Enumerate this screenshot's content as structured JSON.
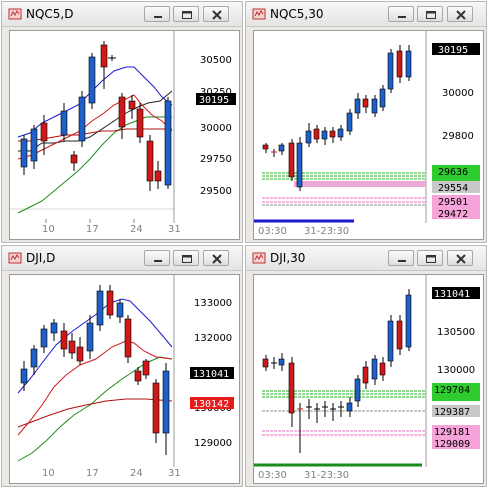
{
  "colors": {
    "up": "#1f5fc8",
    "down": "#d01818",
    "accent_blue": "#1a1ad0"
  },
  "panels": [
    {
      "title": "NQC5,D",
      "y_labels": [
        "30500",
        "30250",
        "30000",
        "29750",
        "29500"
      ],
      "x_labels": [
        "10",
        "17",
        "24",
        "31"
      ],
      "price_tags": [
        {
          "text": "30195",
          "style": "black"
        }
      ]
    },
    {
      "title": "NQC5,30",
      "y_labels": [
        "30000",
        "29800"
      ],
      "x_labels": [
        "03:30",
        "31-23:30"
      ],
      "price_tags": [
        {
          "text": "30195",
          "style": "black"
        },
        {
          "text": "29636",
          "style": "green"
        },
        {
          "text": "29554",
          "style": "gray"
        },
        {
          "text": "29501",
          "style": "pink"
        },
        {
          "text": "29472",
          "style": "pink"
        }
      ]
    },
    {
      "title": "DJI,D",
      "y_labels": [
        "133000",
        "132000",
        "130000",
        "129000"
      ],
      "x_labels": [
        "10",
        "17",
        "24",
        "31"
      ],
      "price_tags": [
        {
          "text": "131041",
          "style": "black"
        },
        {
          "text": "130142",
          "style": "red"
        }
      ]
    },
    {
      "title": "DJI,30",
      "y_labels": [
        "130500",
        "130000"
      ],
      "x_labels": [
        "03:30",
        "31-23:30"
      ],
      "price_tags": [
        {
          "text": "131041",
          "style": "black"
        },
        {
          "text": "129704",
          "style": "green"
        },
        {
          "text": "129387",
          "style": "gray"
        },
        {
          "text": "129181",
          "style": "pink"
        },
        {
          "text": "129009",
          "style": "pink"
        }
      ]
    }
  ]
}
